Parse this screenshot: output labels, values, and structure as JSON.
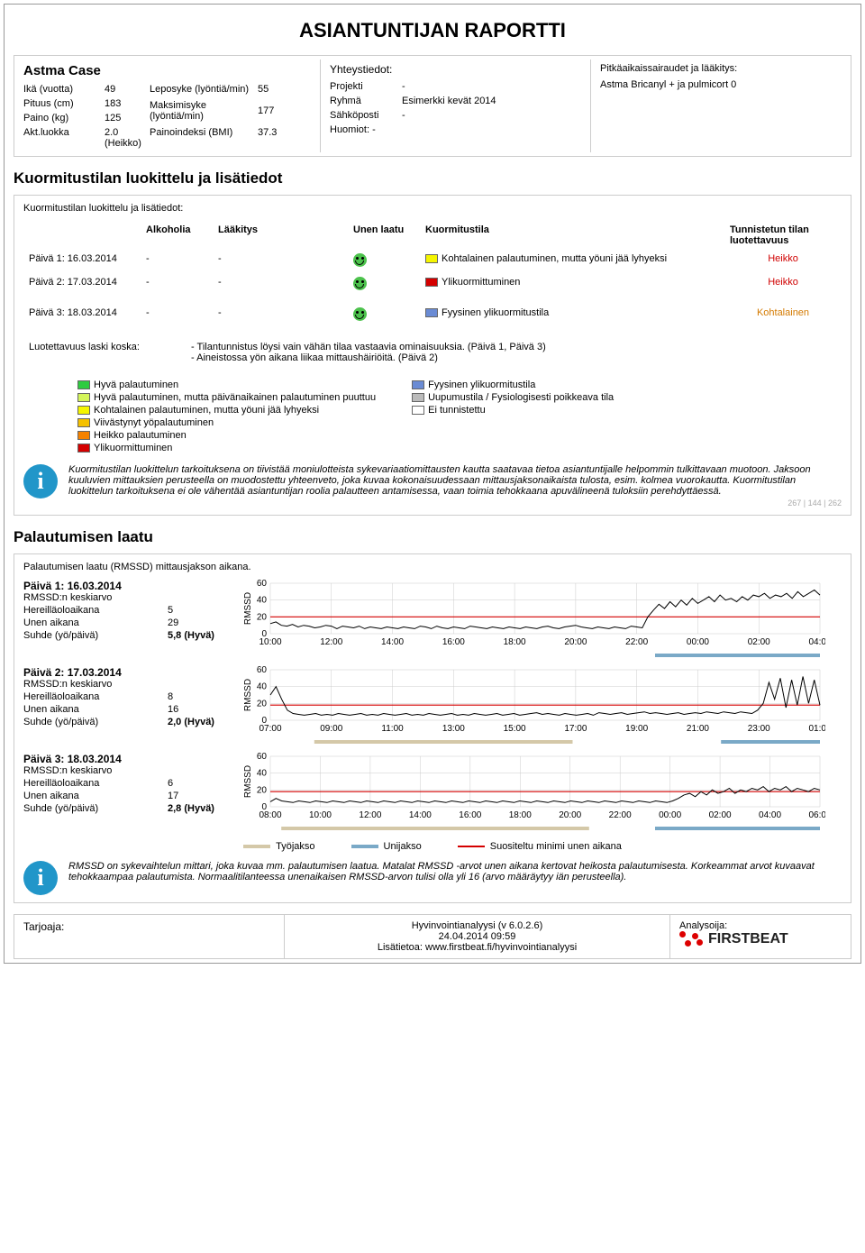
{
  "title": "ASIANTUNTIJAN RAPORTTI",
  "case_name": "Astma Case",
  "patient": {
    "r1k": "Ikä (vuotta)",
    "r1v": "49",
    "r1k2": "Leposyke (lyöntiä/min)",
    "r1v2": "55",
    "r2k": "Pituus (cm)",
    "r2v": "183",
    "r2k2": "Maksimisyke (lyöntiä/min)",
    "r2v2": "177",
    "r3k": "Paino (kg)",
    "r3v": "125",
    "r4k": "Akt.luokka",
    "r4v": "2.0 (Heikko)",
    "r4k2": "Painoindeksi (BMI)",
    "r4v2": "37.3"
  },
  "contact": {
    "title": "Yhteystiedot:",
    "r1k": "Projekti",
    "r1v": "-",
    "r2k": "Ryhmä",
    "r2v": "Esimerkki kevät 2014",
    "r3k": "Sähköposti",
    "r3v": "-",
    "r4": "Huomiot: -"
  },
  "cond": {
    "title": "Pitkäaikaissairaudet ja lääkitys:",
    "text": "Astma Bricanyl + ja pulmicort 0"
  },
  "s1": {
    "heading": "Kuormitustilan luokittelu ja lisätiedot",
    "sub": "Kuormitustilan luokittelu ja lisätiedot:",
    "h1": "Alkoholia",
    "h2": "Lääkitys",
    "h3": "Unen laatu",
    "h4": "Kuormitustila",
    "h5": "Tunnistetun tilan luotettavuus",
    "rows": [
      {
        "day": "Päivä 1: 16.03.2014",
        "col": "-",
        "col2": "-",
        "swatch": "#f5f500",
        "state": "Kohtalainen palautuminen, mutta yöuni jää lyhyeksi",
        "rel": "Heikko",
        "relc": "red"
      },
      {
        "day": "Päivä 2: 17.03.2014",
        "col": "-",
        "col2": "-",
        "swatch": "#d40000",
        "state": "Ylikuormittuminen",
        "rel": "Heikko",
        "relc": "red"
      },
      {
        "day": "",
        "spacer": true
      },
      {
        "day": "Päivä 3: 18.03.2014",
        "col": "-",
        "col2": "-",
        "swatch": "#6a8bd4",
        "state": "Fyysinen ylikuormitustila",
        "rel": "Kohtalainen",
        "relc": "orange"
      }
    ],
    "reason_label": "Luotettavuus laski koska:",
    "reason1": "- Tilantunnistus löysi vain vähän tilaa vastaavia ominaisuuksia. (Päivä 1, Päivä 3)",
    "reason2": "- Aineistossa yön aikana liikaa mittaushäiriöitä. (Päivä 2)",
    "legendL": [
      {
        "c": "#2ecc40",
        "t": "Hyvä palautuminen"
      },
      {
        "c": "#d4f55a",
        "t": "Hyvä palautuminen, mutta päivänaikainen palautuminen puuttuu"
      },
      {
        "c": "#f5f500",
        "t": "Kohtalainen palautuminen, mutta yöuni jää lyhyeksi"
      },
      {
        "c": "#f5c100",
        "t": "Viivästynyt yöpalautuminen"
      },
      {
        "c": "#f58200",
        "t": "Heikko palautuminen"
      },
      {
        "c": "#d40000",
        "t": "Ylikuormittuminen"
      }
    ],
    "legendR": [
      {
        "c": "#6a8bd4",
        "t": "Fyysinen ylikuormitustila"
      },
      {
        "c": "#bbbbbb",
        "t": "Uupumustila / Fysiologisesti poikkeava tila"
      },
      {
        "c": "#ffffff",
        "t": "Ei tunnistettu"
      }
    ],
    "info": "Kuormitustilan luokittelun tarkoituksena on tiivistää moniulotteista sykevariaatiomittausten kautta saatavaa tietoa asiantuntijalle helpommin tulkittavaan muotoon. Jaksoon kuuluvien mittauksien perusteella on muodostettu yhteenveto, joka kuvaa kokonaisuudessaan mittausjaksonaikaista tulosta, esim. kolmea vuorokautta. Kuormitustilan luokittelun tarkoituksena ei ole vähentää asiantuntijan roolia palautteen antamisessa, vaan toimia tehokkaana apuvälineenä tuloksiin perehdyttäessä.",
    "tiny": "267 | 144 | 262"
  },
  "s2": {
    "heading": "Palautumisen laatu",
    "sub": "Palautumisen laatu (RMSSD) mittausjakson aikana.",
    "ylabel": "RMSSD",
    "avg_label": "RMSSD:n keskiarvo",
    "l1": "Hereilläoloaikana",
    "l2": "Unen aikana",
    "l3": "Suhde (yö/päivä)",
    "days": [
      {
        "title": "Päivä 1: 16.03.2014",
        "v1": "5",
        "v2": "29",
        "v3": "5,8 (Hyvä)",
        "ymax": 60,
        "ytick": 20,
        "redline": 20,
        "xticks": [
          "10:00",
          "12:00",
          "14:00",
          "16:00",
          "18:00",
          "20:00",
          "22:00",
          "00:00",
          "02:00",
          "04:00"
        ],
        "line_color": "#000",
        "grid_color": "#ccc",
        "red_color": "#d40000",
        "series": [
          12,
          14,
          10,
          9,
          11,
          8,
          10,
          9,
          7,
          8,
          10,
          9,
          6,
          9,
          8,
          7,
          9,
          6,
          8,
          7,
          6,
          8,
          7,
          6,
          8,
          7,
          6,
          9,
          8,
          6,
          9,
          7,
          6,
          8,
          7,
          6,
          9,
          8,
          7,
          6,
          8,
          7,
          6,
          8,
          7,
          6,
          8,
          7,
          6,
          8,
          9,
          7,
          6,
          8,
          9,
          10,
          8,
          7,
          6,
          8,
          7,
          6,
          8,
          7,
          6,
          9,
          8,
          7,
          20,
          28,
          35,
          30,
          38,
          32,
          40,
          34,
          42,
          36,
          40,
          44,
          38,
          46,
          40,
          42,
          38,
          44,
          40,
          46,
          44,
          48,
          42,
          46,
          44,
          48,
          42,
          50,
          44,
          48,
          52,
          46
        ],
        "bars": [
          {
            "from": 0.7,
            "to": 1.0,
            "c": "#7aa9c7"
          }
        ]
      },
      {
        "title": "Päivä 2: 17.03.2014",
        "v1": "8",
        "v2": "16",
        "v3": "2,0 (Hyvä)",
        "ymax": 60,
        "ytick": 20,
        "redline": 18,
        "xticks": [
          "07:00",
          "09:00",
          "11:00",
          "13:00",
          "15:00",
          "17:00",
          "19:00",
          "21:00",
          "23:00",
          "01:00"
        ],
        "line_color": "#000",
        "grid_color": "#ccc",
        "red_color": "#d40000",
        "series": [
          30,
          40,
          25,
          12,
          8,
          7,
          6,
          7,
          8,
          6,
          7,
          6,
          8,
          7,
          6,
          7,
          8,
          6,
          7,
          6,
          8,
          7,
          6,
          7,
          8,
          6,
          7,
          6,
          8,
          7,
          6,
          7,
          8,
          6,
          7,
          6,
          8,
          7,
          6,
          7,
          8,
          6,
          7,
          8,
          6,
          7,
          8,
          9,
          7,
          8,
          7,
          6,
          8,
          7,
          6,
          7,
          8,
          6,
          9,
          8,
          7,
          8,
          9,
          7,
          8,
          9,
          10,
          8,
          9,
          8,
          7,
          8,
          9,
          7,
          8,
          9,
          8,
          10,
          9,
          8,
          10,
          9,
          8,
          10,
          9,
          8,
          12,
          20,
          45,
          25,
          50,
          15,
          48,
          18,
          52,
          20,
          48,
          18
        ],
        "bars": [
          {
            "from": 0.08,
            "to": 0.55,
            "c": "#d4c8a8"
          },
          {
            "from": 0.82,
            "to": 1.0,
            "c": "#7aa9c7"
          }
        ]
      },
      {
        "title": "Päivä 3: 18.03.2014",
        "v1": "6",
        "v2": "17",
        "v3": "2,8 (Hyvä)",
        "ymax": 60,
        "ytick": 20,
        "redline": 18,
        "xticks": [
          "08:00",
          "10:00",
          "12:00",
          "14:00",
          "16:00",
          "18:00",
          "20:00",
          "22:00",
          "00:00",
          "02:00",
          "04:00",
          "06:00"
        ],
        "line_color": "#000",
        "grid_color": "#ccc",
        "red_color": "#d40000",
        "series": [
          6,
          10,
          7,
          6,
          5,
          7,
          6,
          5,
          7,
          6,
          5,
          7,
          6,
          5,
          7,
          6,
          5,
          7,
          6,
          5,
          7,
          6,
          5,
          7,
          6,
          5,
          7,
          6,
          5,
          7,
          6,
          5,
          7,
          6,
          5,
          7,
          6,
          5,
          7,
          6,
          5,
          7,
          6,
          5,
          7,
          6,
          5,
          7,
          6,
          5,
          7,
          6,
          5,
          7,
          6,
          5,
          7,
          6,
          5,
          7,
          6,
          5,
          7,
          6,
          5,
          7,
          6,
          5,
          7,
          6,
          5,
          7,
          10,
          14,
          16,
          12,
          18,
          14,
          20,
          16,
          18,
          22,
          16,
          20,
          18,
          22,
          20,
          24,
          18,
          22,
          20,
          24,
          18,
          22,
          20,
          18,
          22,
          20
        ],
        "bars": [
          {
            "from": 0.02,
            "to": 0.58,
            "c": "#d4c8a8"
          },
          {
            "from": 0.7,
            "to": 1.0,
            "c": "#7aa9c7"
          }
        ]
      }
    ],
    "legend": {
      "k1": "Työjakso",
      "c1": "#d4c8a8",
      "k2": "Unijakso",
      "c2": "#7aa9c7",
      "k3": "Suositeltu minimi unen aikana",
      "c3": "#d40000"
    },
    "info": "RMSSD on sykevaihtelun mittari, joka kuvaa mm. palautumisen laatua. Matalat RMSSD -arvot unen aikana kertovat heikosta palautumisesta. Korkeammat arvot kuvaavat tehokkaampaa palautumista. Normaalitilanteessa unenaikaisen RMSSD-arvon tulisi olla yli 16 (arvo määräytyy iän perusteella)."
  },
  "footer": {
    "l1": "Tarjoaja:",
    "c1": "Hyvinvointianalyysi (v 6.0.2.6)",
    "c2": "24.04.2014 09:59",
    "c3": "Lisätietoa: www.firstbeat.fi/hyvinvointianalyysi",
    "r1": "Analysoija:",
    "brand": "FIRSTBEAT"
  }
}
